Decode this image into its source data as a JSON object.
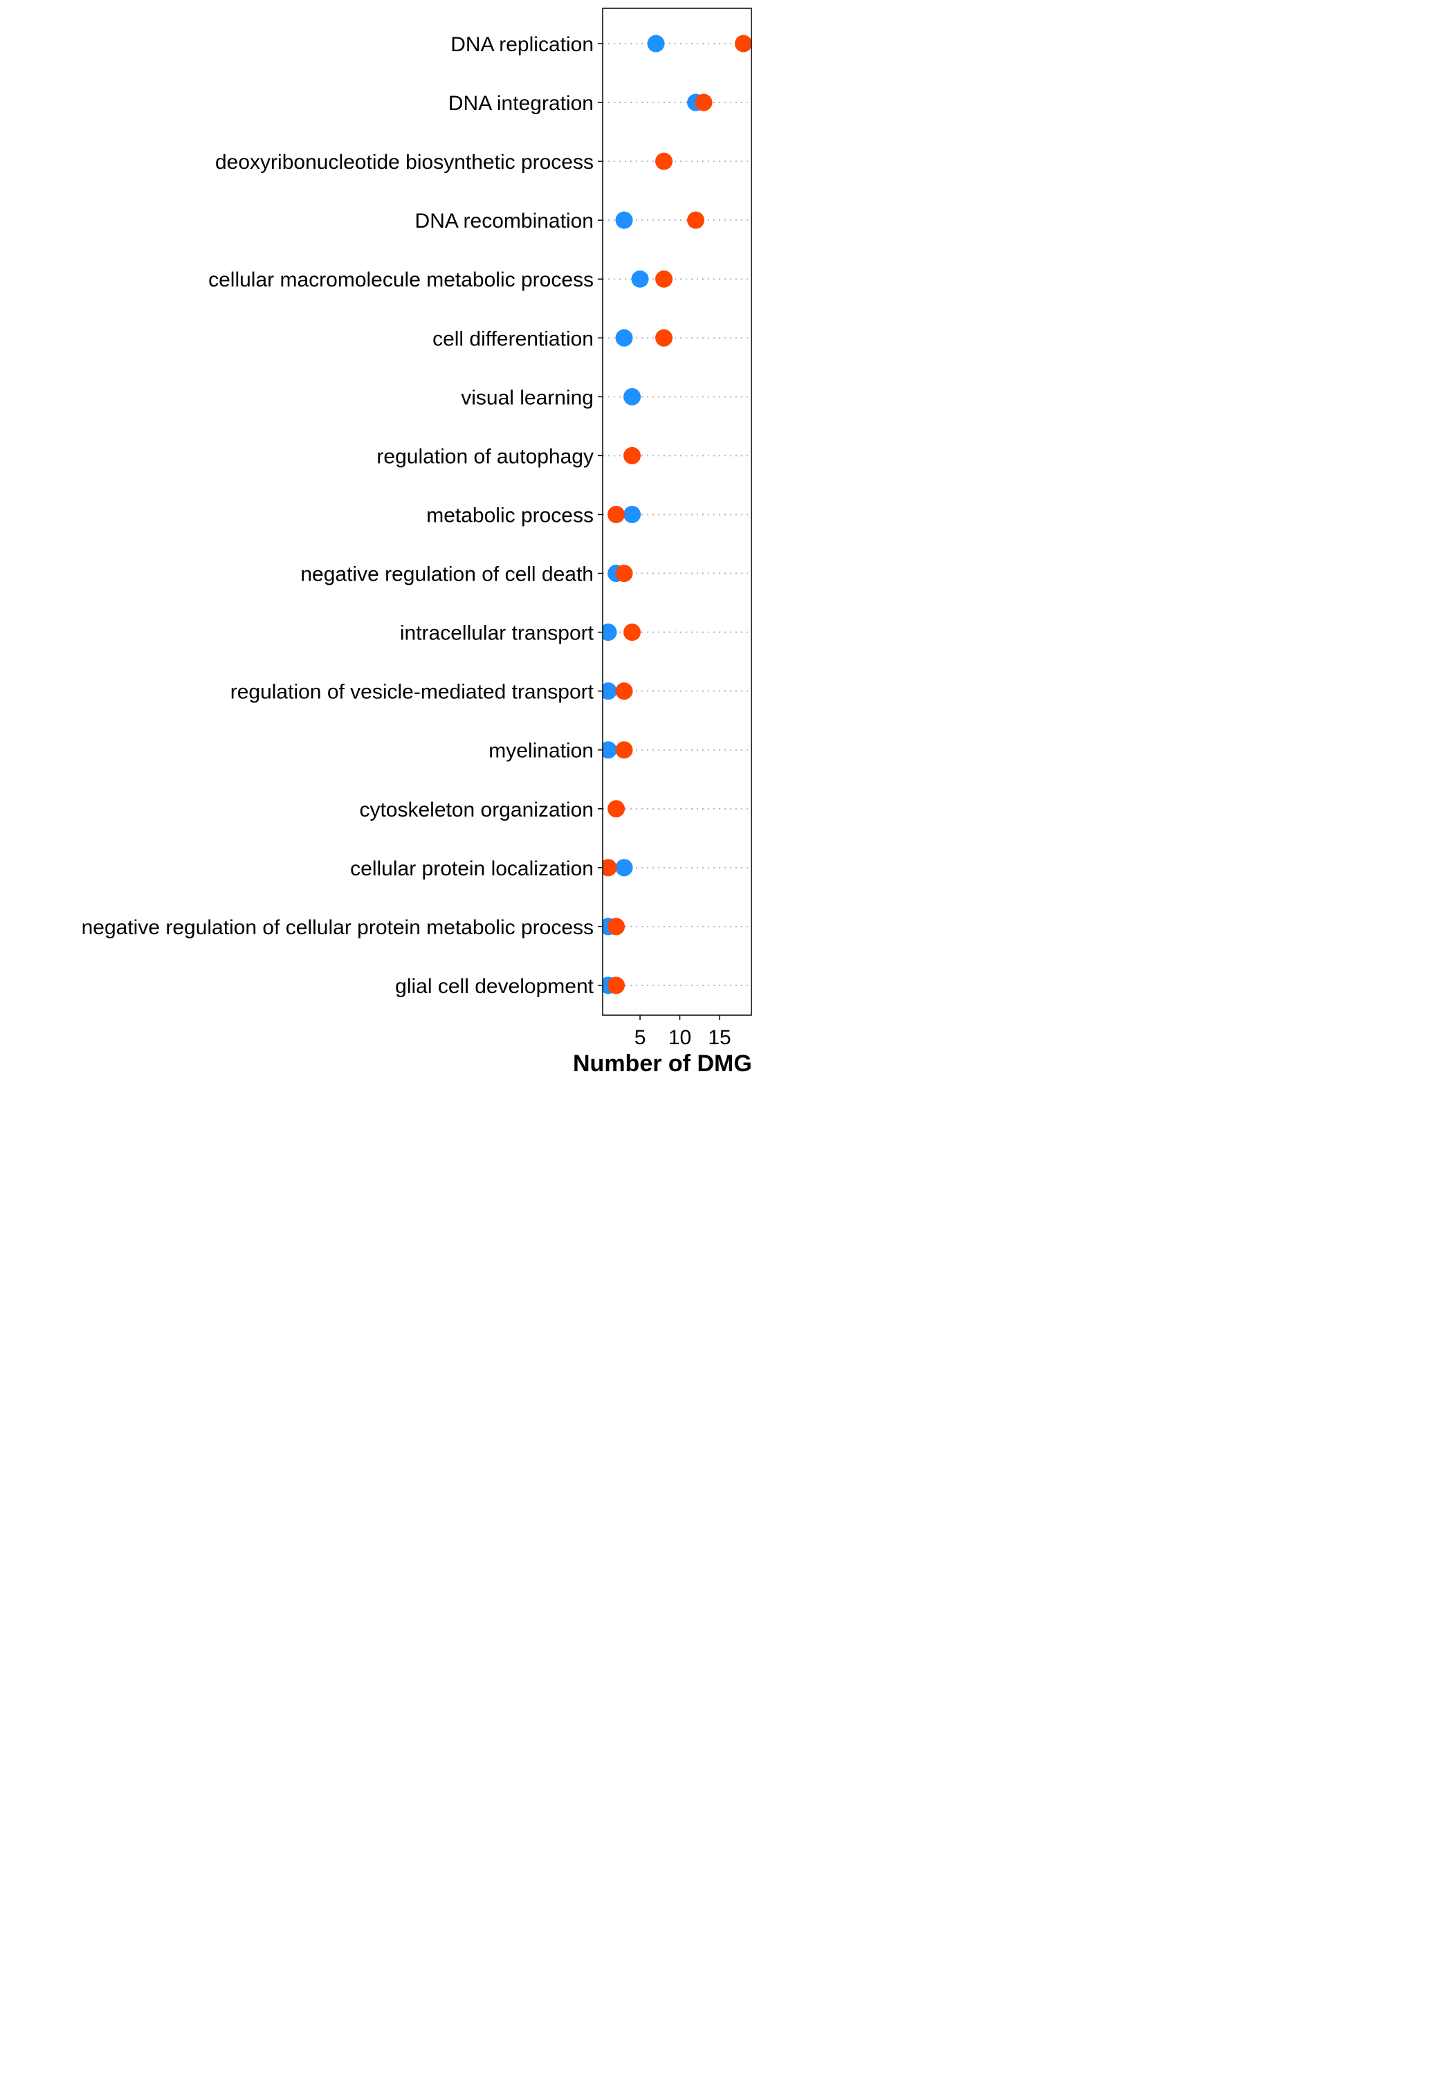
{
  "chart_data": {
    "type": "scatter",
    "xlabel": "Number of DMG",
    "x_ticks": [
      5,
      10,
      15
    ],
    "xlim": [
      0.3,
      19
    ],
    "grid": "dotted horizontal guide per category",
    "categories": [
      "DNA replication",
      "DNA integration",
      "deoxyribonucleotide biosynthetic process",
      "DNA recombination",
      "cellular macromolecule metabolic process",
      "cell differentiation",
      "visual learning",
      "regulation of autophagy",
      "metabolic process",
      "negative regulation of cell death",
      "intracellular transport",
      "regulation of vesicle-mediated transport",
      "myelination",
      "cytoskeleton organization",
      "cellular protein localization",
      "negative regulation of cellular protein metabolic process",
      "glial cell development"
    ],
    "series": [
      {
        "color": "#1E90FF",
        "values": [
          7,
          12,
          null,
          3,
          5,
          3,
          4,
          null,
          4,
          2,
          1,
          1,
          1,
          null,
          3,
          1,
          1
        ]
      },
      {
        "color": "#FF4500",
        "values": [
          18,
          13,
          8,
          12,
          8,
          8,
          null,
          4,
          2,
          3,
          4,
          3,
          3,
          2,
          1,
          2,
          2
        ]
      }
    ]
  }
}
